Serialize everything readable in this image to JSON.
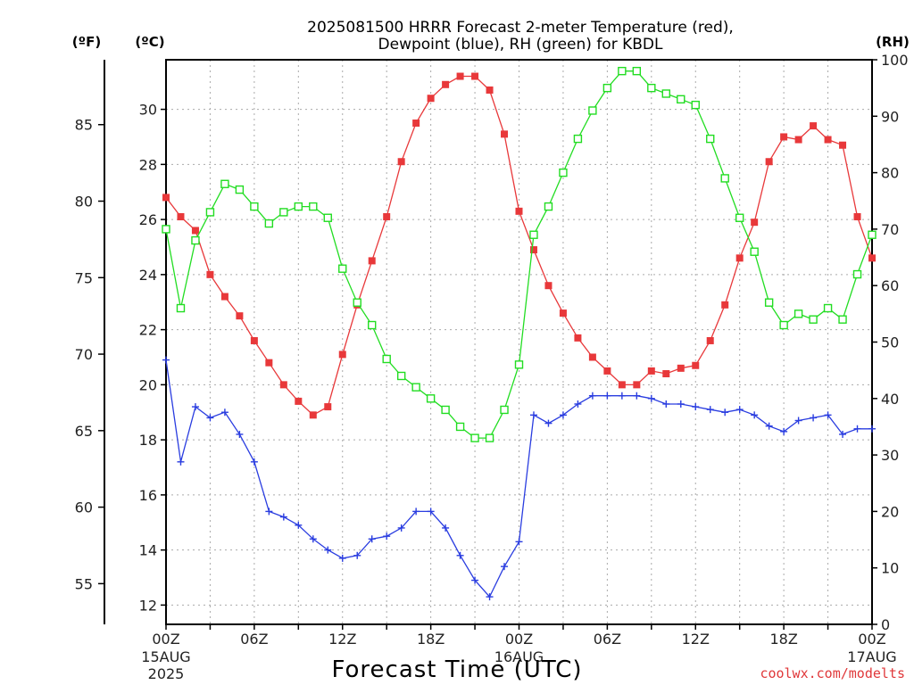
{
  "chart_data": {
    "type": "line",
    "title_lines": [
      "2025081500 HRRR Forecast 2-meter Temperature (red),",
      "Dewpoint (blue), RH (green) for KBDL"
    ],
    "xlabel": "Forecast Time (UTC)",
    "left_unit_f": "(ºF)",
    "left_unit_c": "(ºC)",
    "right_unit": "(RH)",
    "credit": "coolwx.com/modelts",
    "x_hours": [
      0,
      1,
      2,
      3,
      4,
      5,
      6,
      7,
      8,
      9,
      10,
      11,
      12,
      13,
      14,
      15,
      16,
      17,
      18,
      19,
      20,
      21,
      22,
      23,
      24,
      25,
      26,
      27,
      28,
      29,
      30,
      31,
      32,
      33,
      34,
      35,
      36,
      37,
      38,
      39,
      40,
      41,
      42,
      43,
      44,
      45,
      46,
      47,
      48
    ],
    "x_ticks": [
      {
        "hour": 0,
        "label": "00Z",
        "date": "15AUG",
        "year": "2025"
      },
      {
        "hour": 6,
        "label": "06Z",
        "date": "",
        "year": ""
      },
      {
        "hour": 12,
        "label": "12Z",
        "date": "",
        "year": ""
      },
      {
        "hour": 18,
        "label": "18Z",
        "date": "",
        "year": ""
      },
      {
        "hour": 24,
        "label": "00Z",
        "date": "16AUG",
        "year": ""
      },
      {
        "hour": 30,
        "label": "06Z",
        "date": "",
        "year": ""
      },
      {
        "hour": 36,
        "label": "12Z",
        "date": "",
        "year": ""
      },
      {
        "hour": 42,
        "label": "18Z",
        "date": "",
        "year": ""
      },
      {
        "hour": 48,
        "label": "00Z",
        "date": "17AUG",
        "year": ""
      }
    ],
    "y_celsius_ticks": [
      12,
      14,
      16,
      18,
      20,
      22,
      24,
      26,
      28,
      30
    ],
    "y_celsius_range": [
      11.3,
      31.8
    ],
    "y_fahrenheit_ticks": [
      55,
      60,
      65,
      70,
      75,
      80,
      85
    ],
    "y_rh_ticks": [
      0,
      10,
      20,
      30,
      40,
      50,
      60,
      70,
      80,
      90,
      100
    ],
    "y_rh_range": [
      0,
      100
    ],
    "grid": true,
    "series": [
      {
        "key": "temperature",
        "units": "°C",
        "color": "#e8383a",
        "marker": "filled-square",
        "values": [
          26.8,
          26.1,
          25.6,
          24.0,
          23.2,
          22.5,
          21.6,
          20.8,
          20.0,
          19.4,
          18.9,
          19.2,
          21.1,
          22.9,
          24.5,
          26.1,
          28.1,
          29.5,
          30.4,
          30.9,
          31.2,
          31.2,
          30.7,
          29.1,
          26.3,
          24.9,
          23.6,
          22.6,
          21.7,
          21.0,
          20.5,
          20.0,
          20.0,
          20.5,
          20.4,
          20.6,
          20.7,
          21.6,
          22.9,
          24.6,
          25.9,
          28.1,
          29.0,
          28.9,
          29.4,
          28.9,
          28.7,
          26.1,
          24.6
        ]
      },
      {
        "key": "dewpoint",
        "units": "°C",
        "color": "#2a3de0",
        "marker": "plus",
        "values": [
          20.9,
          17.2,
          19.2,
          18.8,
          19.0,
          18.2,
          17.2,
          15.4,
          15.2,
          14.9,
          14.4,
          14.0,
          13.7,
          13.8,
          14.4,
          14.5,
          14.8,
          15.4,
          15.4,
          14.8,
          13.8,
          12.9,
          12.3,
          13.4,
          14.3,
          18.9,
          18.6,
          18.9,
          19.3,
          19.6,
          19.6,
          19.6,
          19.6,
          19.5,
          19.3,
          19.3,
          19.2,
          19.1,
          19.0,
          19.1,
          18.9,
          18.5,
          18.3,
          18.7,
          18.8,
          18.9,
          18.2,
          18.4,
          18.4
        ]
      },
      {
        "key": "rh",
        "units": "%",
        "color": "#22dd22",
        "marker": "open-square",
        "values": [
          70,
          56,
          68,
          73,
          78,
          77,
          74,
          71,
          73,
          74,
          74,
          72,
          63,
          57,
          53,
          47,
          44,
          42,
          40,
          38,
          35,
          33,
          33,
          38,
          46,
          69,
          74,
          80,
          86,
          91,
          95,
          98,
          98,
          95,
          94,
          93,
          92,
          86,
          79,
          72,
          66,
          57,
          53,
          55,
          54,
          56,
          54,
          62,
          69
        ]
      }
    ]
  }
}
